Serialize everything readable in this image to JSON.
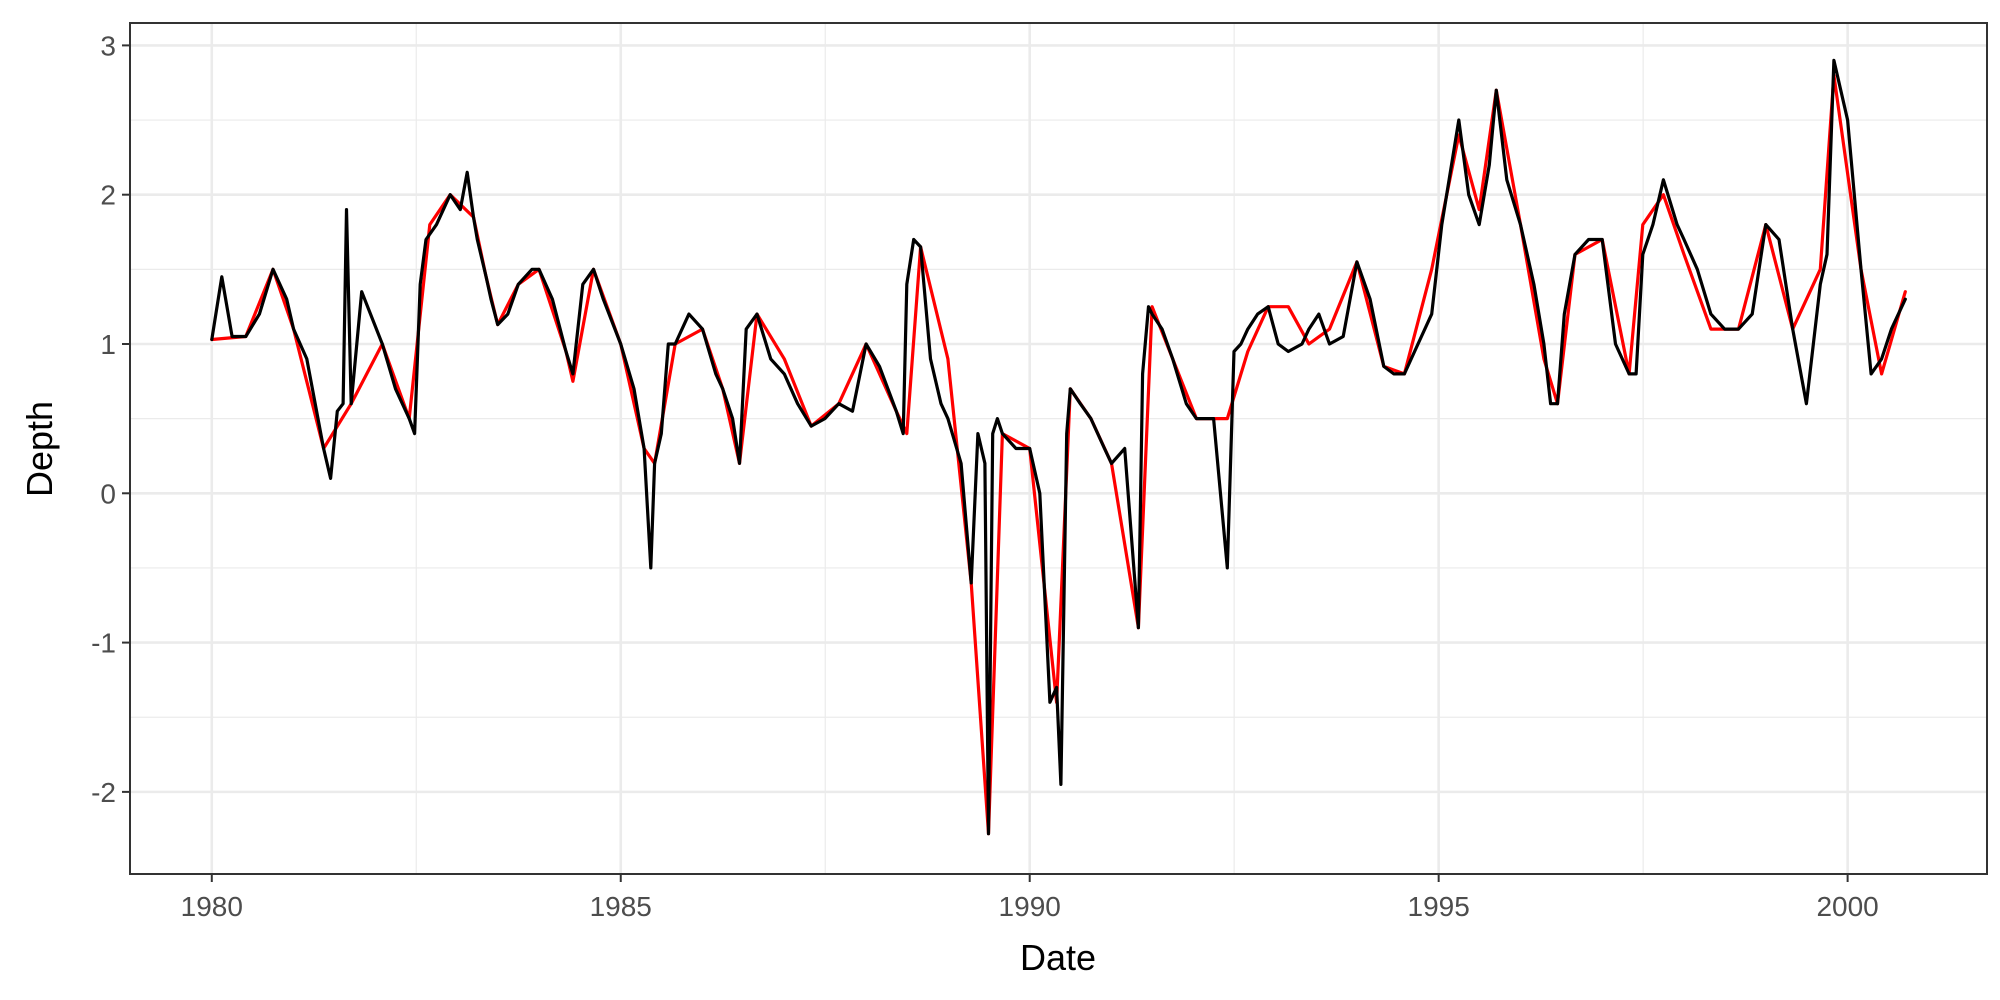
{
  "chart_data": {
    "type": "line",
    "title": "",
    "xlabel": "Date",
    "ylabel": "Depth",
    "xlim": [
      "1979-01-01",
      "2001-09-15"
    ],
    "ylim": [
      -2.55,
      3.15
    ],
    "x_ticks": [
      "1980",
      "1985",
      "1990",
      "1995",
      "2000"
    ],
    "y_ticks": [
      "-2",
      "-1",
      "0",
      "1",
      "2",
      "3"
    ],
    "grid": true,
    "legend": "none",
    "colors": {
      "observed": "#000000",
      "imputed": "#ff0000",
      "grid": "#ebebeb",
      "panel_border": "#333333",
      "tick_text": "#4d4d4d"
    },
    "series": [
      {
        "color": "#ff0000",
        "x": [
          "1980-01-01",
          "1980-06-01",
          "1980-10-01",
          "1981-01-01",
          "1981-05-15",
          "1981-09-15",
          "1982-02-01",
          "1982-06-01",
          "1982-09-01",
          "1982-12-01",
          "1983-03-15",
          "1983-05-10",
          "1983-07-01",
          "1983-10-01",
          "1984-01-01",
          "1984-05-01",
          "1984-06-01",
          "1984-09-01",
          "1985-01-01",
          "1985-04-15",
          "1985-06-01",
          "1985-09-01",
          "1986-01-01",
          "1986-04-01",
          "1986-06-15",
          "1986-09-01",
          "1987-01-01",
          "1987-05-01",
          "1987-09-01",
          "1988-01-01",
          "1988-05-15",
          "1988-07-01",
          "1988-09-01",
          "1989-01-01",
          "1989-04-15",
          "1989-07-01",
          "1989-09-01",
          "1990-01-01",
          "1990-05-01",
          "1990-07-01",
          "1990-10-01",
          "1991-01-01",
          "1991-05-01",
          "1991-07-01",
          "1991-10-01",
          "1992-01-15",
          "1992-06-01",
          "1992-09-01",
          "1992-12-01",
          "1993-03-01",
          "1993-06-01",
          "1993-09-01",
          "1994-01-01",
          "1994-05-01",
          "1994-08-01",
          "1994-12-01",
          "1995-04-01",
          "1995-07-01",
          "1995-09-15",
          "1996-01-01",
          "1996-04-15",
          "1996-06-15",
          "1996-09-01",
          "1997-01-01",
          "1997-05-01",
          "1997-07-01",
          "1997-10-01",
          "1998-01-01",
          "1998-05-01",
          "1998-09-01",
          "1999-01-01",
          "1999-05-01",
          "1999-09-01",
          "1999-11-01",
          "2000-03-01",
          "2000-06-01",
          "2000-09-15"
        ],
        "y": [
          1.03,
          1.05,
          1.5,
          1.1,
          0.3,
          0.6,
          1.0,
          0.5,
          1.8,
          2.0,
          1.85,
          1.45,
          1.13,
          1.4,
          1.5,
          0.95,
          0.75,
          1.5,
          1.0,
          0.3,
          0.2,
          1.0,
          1.1,
          0.7,
          0.2,
          1.2,
          0.9,
          0.45,
          0.6,
          1.0,
          0.55,
          0.4,
          1.65,
          0.9,
          -0.6,
          -2.28,
          0.4,
          0.3,
          -1.4,
          0.7,
          0.5,
          0.2,
          -0.9,
          1.25,
          0.9,
          0.5,
          0.5,
          0.95,
          1.25,
          1.25,
          1.0,
          1.1,
          1.55,
          0.85,
          0.8,
          1.5,
          2.4,
          1.9,
          2.7,
          1.8,
          0.9,
          0.6,
          1.6,
          1.7,
          0.8,
          1.8,
          2.0,
          1.6,
          1.1,
          1.1,
          1.8,
          1.1,
          1.5,
          2.8,
          1.5,
          0.8,
          1.35
        ]
      },
      {
        "color": "#000000",
        "x": [
          "1980-01-01",
          "1980-02-15",
          "1980-04-01",
          "1980-06-01",
          "1980-08-01",
          "1980-10-01",
          "1980-12-01",
          "1981-01-01",
          "1981-03-01",
          "1981-05-15",
          "1981-06-15",
          "1981-07-15",
          "1981-08-10",
          "1981-08-25",
          "1981-09-15",
          "1981-11-01",
          "1982-02-01",
          "1982-04-01",
          "1982-06-01",
          "1982-06-25",
          "1982-07-20",
          "1982-08-15",
          "1982-10-01",
          "1982-12-01",
          "1983-01-15",
          "1983-02-15",
          "1983-03-15",
          "1983-04-01",
          "1983-05-10",
          "1983-06-01",
          "1983-07-01",
          "1983-08-15",
          "1983-10-01",
          "1983-12-01",
          "1984-01-01",
          "1984-03-01",
          "1984-05-01",
          "1984-06-01",
          "1984-07-15",
          "1984-09-01",
          "1984-10-15",
          "1985-01-01",
          "1985-03-01",
          "1985-04-15",
          "1985-05-15",
          "1985-06-01",
          "1985-07-01",
          "1985-08-01",
          "1985-09-01",
          "1985-11-01",
          "1986-01-01",
          "1986-03-01",
          "1986-04-01",
          "1986-05-15",
          "1986-06-15",
          "1986-07-15",
          "1986-09-01",
          "1986-11-01",
          "1987-01-01",
          "1987-03-01",
          "1987-05-01",
          "1987-07-01",
          "1987-09-01",
          "1987-11-01",
          "1988-01-01",
          "1988-03-01",
          "1988-05-15",
          "1988-06-15",
          "1988-07-01",
          "1988-08-01",
          "1988-09-01",
          "1988-10-15",
          "1988-12-01",
          "1989-01-01",
          "1989-03-01",
          "1989-04-15",
          "1989-05-15",
          "1989-06-15",
          "1989-07-01",
          "1989-07-20",
          "1989-08-10",
          "1989-09-01",
          "1989-11-01",
          "1990-01-01",
          "1990-02-15",
          "1990-04-01",
          "1990-05-01",
          "1990-05-20",
          "1990-06-15",
          "1990-07-01",
          "1990-08-15",
          "1990-10-01",
          "1990-12-01",
          "1991-01-01",
          "1991-03-01",
          "1991-05-01",
          "1991-05-20",
          "1991-06-15",
          "1991-07-01",
          "1991-08-15",
          "1991-10-01",
          "1991-12-01",
          "1992-01-15",
          "1992-04-01",
          "1992-06-01",
          "1992-07-01",
          "1992-08-01",
          "1992-09-01",
          "1992-10-15",
          "1992-12-01",
          "1993-01-15",
          "1993-03-01",
          "1993-05-01",
          "1993-06-01",
          "1993-07-15",
          "1993-09-01",
          "1993-11-01",
          "1994-01-01",
          "1994-03-01",
          "1994-05-01",
          "1994-06-15",
          "1994-08-01",
          "1994-10-01",
          "1994-12-01",
          "1995-01-15",
          "1995-04-01",
          "1995-05-15",
          "1995-07-01",
          "1995-08-15",
          "1995-09-15",
          "1995-11-01",
          "1996-01-01",
          "1996-03-01",
          "1996-04-15",
          "1996-05-15",
          "1996-06-15",
          "1996-07-15",
          "1996-09-01",
          "1996-11-01",
          "1997-01-01",
          "1997-03-01",
          "1997-05-01",
          "1997-06-01",
          "1997-07-01",
          "1997-08-15",
          "1997-10-01",
          "1997-12-01",
          "1998-01-01",
          "1998-03-01",
          "1998-05-01",
          "1998-07-01",
          "1998-09-01",
          "1998-11-01",
          "1999-01-01",
          "1999-03-01",
          "1999-05-01",
          "1999-07-01",
          "1999-09-01",
          "1999-10-01",
          "1999-11-01",
          "2000-01-01",
          "2000-03-01",
          "2000-04-15",
          "2000-06-01",
          "2000-07-15",
          "2000-09-15"
        ],
        "y": [
          1.03,
          1.45,
          1.05,
          1.05,
          1.2,
          1.5,
          1.3,
          1.1,
          0.9,
          0.3,
          0.1,
          0.55,
          0.6,
          1.9,
          0.6,
          1.35,
          1.0,
          0.7,
          0.5,
          0.4,
          1.4,
          1.7,
          1.8,
          2.0,
          1.9,
          2.15,
          1.85,
          1.7,
          1.45,
          1.3,
          1.13,
          1.2,
          1.4,
          1.5,
          1.5,
          1.3,
          0.95,
          0.8,
          1.4,
          1.5,
          1.3,
          1.0,
          0.7,
          0.3,
          -0.5,
          0.2,
          0.4,
          1.0,
          1.0,
          1.2,
          1.1,
          0.8,
          0.7,
          0.5,
          0.2,
          1.1,
          1.2,
          0.9,
          0.8,
          0.6,
          0.45,
          0.5,
          0.6,
          0.55,
          1.0,
          0.85,
          0.55,
          0.4,
          1.4,
          1.7,
          1.65,
          0.9,
          0.6,
          0.5,
          0.2,
          -0.6,
          0.4,
          0.2,
          -2.28,
          0.4,
          0.5,
          0.4,
          0.3,
          0.3,
          0.0,
          -1.4,
          -1.3,
          -1.95,
          0.4,
          0.7,
          0.6,
          0.5,
          0.3,
          0.2,
          0.3,
          -0.9,
          0.8,
          1.25,
          1.2,
          1.1,
          0.9,
          0.6,
          0.5,
          0.5,
          -0.5,
          0.95,
          1.0,
          1.1,
          1.2,
          1.25,
          1.0,
          0.95,
          1.0,
          1.1,
          1.2,
          1.0,
          1.05,
          1.55,
          1.3,
          0.85,
          0.8,
          0.8,
          1.0,
          1.2,
          1.8,
          2.5,
          2.0,
          1.8,
          2.2,
          2.7,
          2.1,
          1.8,
          1.4,
          1.0,
          0.6,
          0.6,
          1.2,
          1.6,
          1.7,
          1.7,
          1.0,
          0.8,
          0.8,
          1.6,
          1.8,
          2.1,
          1.8,
          1.7,
          1.5,
          1.2,
          1.1,
          1.1,
          1.2,
          1.8,
          1.7,
          1.1,
          0.6,
          1.4,
          1.6,
          2.9,
          2.5,
          1.5,
          0.8,
          0.9,
          1.1,
          1.3
        ]
      }
    ]
  }
}
